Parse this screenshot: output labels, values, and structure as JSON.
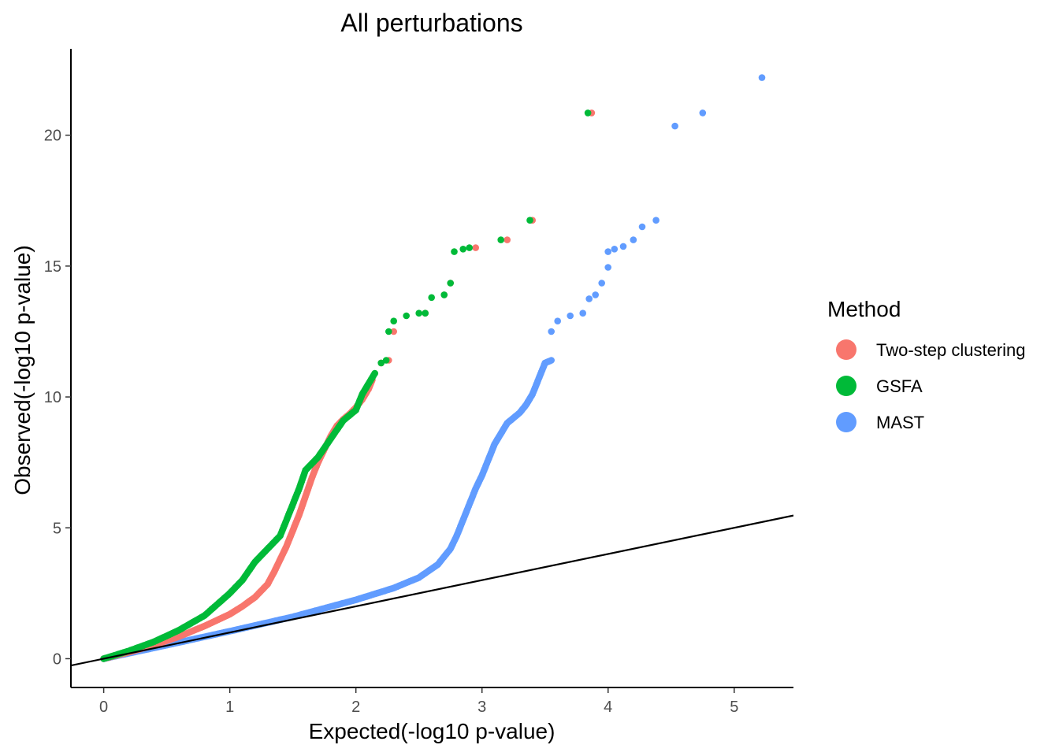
{
  "chart_data": {
    "type": "scatter",
    "title": "All perturbations",
    "xlabel": "Expected(-log10 p-value)",
    "ylabel": "Observed(-log10 p-value)",
    "xlim": [
      -0.26,
      5.47
    ],
    "ylim": [
      -1.1,
      23.3
    ],
    "x_ticks": [
      0,
      1,
      2,
      3,
      4,
      5
    ],
    "y_ticks": [
      0,
      5,
      10,
      15,
      20
    ],
    "grid": false,
    "reference_line": {
      "label": "y = x",
      "slope": 1,
      "intercept": 0
    },
    "legend": {
      "title": "Method",
      "position": "right",
      "entries": [
        "Two-step clustering",
        "GSFA",
        "MAST"
      ]
    },
    "series": [
      {
        "name": "Two-step clustering",
        "color": "#F8766D",
        "curve": [
          [
            0,
            0
          ],
          [
            0.2,
            0.25
          ],
          [
            0.4,
            0.52
          ],
          [
            0.6,
            0.85
          ],
          [
            0.8,
            1.25
          ],
          [
            1.0,
            1.7
          ],
          [
            1.1,
            2.0
          ],
          [
            1.2,
            2.35
          ],
          [
            1.3,
            2.85
          ],
          [
            1.35,
            3.3
          ],
          [
            1.4,
            3.8
          ],
          [
            1.45,
            4.3
          ],
          [
            1.5,
            4.9
          ],
          [
            1.55,
            5.5
          ],
          [
            1.6,
            6.2
          ],
          [
            1.65,
            6.9
          ],
          [
            1.7,
            7.5
          ],
          [
            1.75,
            8.0
          ],
          [
            1.8,
            8.5
          ],
          [
            1.85,
            8.9
          ],
          [
            1.9,
            9.15
          ],
          [
            1.95,
            9.35
          ],
          [
            2.0,
            9.6
          ],
          [
            2.05,
            9.9
          ],
          [
            2.1,
            10.3
          ],
          [
            2.13,
            10.65
          ]
        ],
        "outliers": [
          [
            2.2,
            11.3
          ],
          [
            2.26,
            11.4
          ],
          [
            2.3,
            12.5
          ],
          [
            2.55,
            13.2
          ],
          [
            2.7,
            13.9
          ],
          [
            2.75,
            14.35
          ],
          [
            2.95,
            15.7
          ],
          [
            3.2,
            16.0
          ],
          [
            3.4,
            16.75
          ],
          [
            3.87,
            20.85
          ]
        ]
      },
      {
        "name": "GSFA",
        "color": "#00BA38",
        "curve": [
          [
            0,
            0
          ],
          [
            0.2,
            0.3
          ],
          [
            0.4,
            0.65
          ],
          [
            0.6,
            1.1
          ],
          [
            0.8,
            1.65
          ],
          [
            1.0,
            2.5
          ],
          [
            1.1,
            3.0
          ],
          [
            1.2,
            3.7
          ],
          [
            1.3,
            4.2
          ],
          [
            1.4,
            4.7
          ],
          [
            1.45,
            5.3
          ],
          [
            1.5,
            5.9
          ],
          [
            1.55,
            6.5
          ],
          [
            1.6,
            7.2
          ],
          [
            1.7,
            7.7
          ],
          [
            1.8,
            8.4
          ],
          [
            1.9,
            9.1
          ],
          [
            2.0,
            9.5
          ],
          [
            2.05,
            10.1
          ],
          [
            2.1,
            10.5
          ],
          [
            2.15,
            10.9
          ]
        ],
        "outliers": [
          [
            2.2,
            11.3
          ],
          [
            2.24,
            11.4
          ],
          [
            2.26,
            12.5
          ],
          [
            2.3,
            12.9
          ],
          [
            2.4,
            13.1
          ],
          [
            2.5,
            13.2
          ],
          [
            2.55,
            13.2
          ],
          [
            2.6,
            13.8
          ],
          [
            2.7,
            13.9
          ],
          [
            2.75,
            14.35
          ],
          [
            2.78,
            15.55
          ],
          [
            2.85,
            15.65
          ],
          [
            2.9,
            15.7
          ],
          [
            3.15,
            16.0
          ],
          [
            3.38,
            16.75
          ],
          [
            3.84,
            20.85
          ]
        ]
      },
      {
        "name": "MAST",
        "color": "#619CFF",
        "curve": [
          [
            0,
            0
          ],
          [
            0.5,
            0.52
          ],
          [
            1.0,
            1.05
          ],
          [
            1.5,
            1.6
          ],
          [
            2.0,
            2.25
          ],
          [
            2.3,
            2.7
          ],
          [
            2.5,
            3.1
          ],
          [
            2.65,
            3.6
          ],
          [
            2.75,
            4.2
          ],
          [
            2.8,
            4.7
          ],
          [
            2.85,
            5.3
          ],
          [
            2.9,
            5.9
          ],
          [
            2.95,
            6.5
          ],
          [
            3.0,
            7.0
          ],
          [
            3.05,
            7.6
          ],
          [
            3.1,
            8.2
          ],
          [
            3.15,
            8.6
          ],
          [
            3.2,
            9.0
          ],
          [
            3.3,
            9.4
          ],
          [
            3.35,
            9.7
          ],
          [
            3.4,
            10.1
          ],
          [
            3.45,
            10.7
          ],
          [
            3.5,
            11.3
          ],
          [
            3.55,
            11.4
          ]
        ],
        "outliers": [
          [
            3.55,
            12.5
          ],
          [
            3.6,
            12.9
          ],
          [
            3.7,
            13.1
          ],
          [
            3.8,
            13.2
          ],
          [
            3.85,
            13.75
          ],
          [
            3.9,
            13.9
          ],
          [
            3.95,
            14.35
          ],
          [
            4.0,
            14.95
          ],
          [
            4.0,
            15.55
          ],
          [
            4.05,
            15.65
          ],
          [
            4.12,
            15.75
          ],
          [
            4.2,
            16.0
          ],
          [
            4.27,
            16.5
          ],
          [
            4.38,
            16.75
          ],
          [
            4.53,
            20.35
          ],
          [
            4.75,
            20.85
          ],
          [
            5.22,
            22.2
          ]
        ]
      }
    ]
  }
}
